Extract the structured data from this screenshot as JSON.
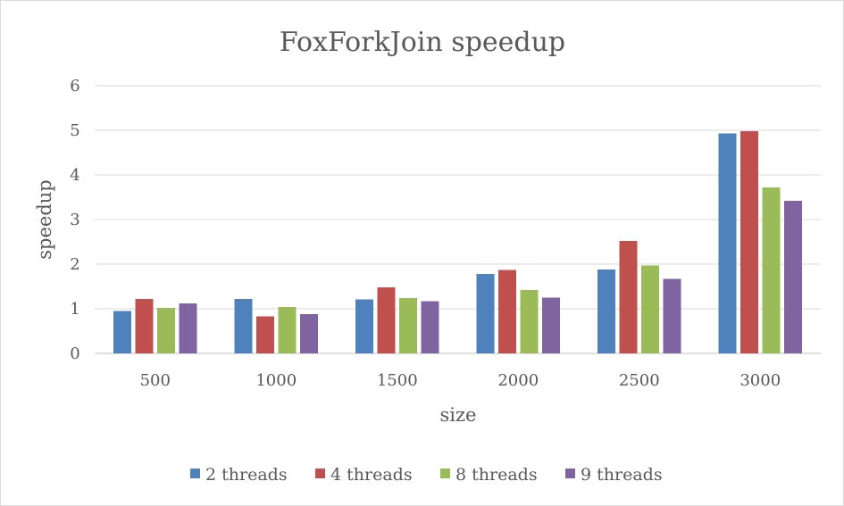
{
  "chart_data": {
    "type": "bar",
    "title": "FoxForkJoin speedup",
    "xlabel": "size",
    "ylabel": "speedup",
    "categories": [
      "500",
      "1000",
      "1500",
      "2000",
      "2500",
      "3000"
    ],
    "ylim": [
      0,
      6
    ],
    "yticks": [
      0,
      1,
      2,
      3,
      4,
      5,
      6
    ],
    "grid": true,
    "legend_position": "bottom",
    "series": [
      {
        "name": "2 threads",
        "color": "#4f81bd",
        "values": [
          0.95,
          1.22,
          1.21,
          1.78,
          1.88,
          4.93
        ]
      },
      {
        "name": "4 threads",
        "color": "#c0504d",
        "values": [
          1.22,
          0.83,
          1.48,
          1.87,
          2.52,
          4.98
        ]
      },
      {
        "name": "8 threads",
        "color": "#9bbb59",
        "values": [
          1.02,
          1.04,
          1.24,
          1.42,
          1.97,
          3.72
        ]
      },
      {
        "name": "9 threads",
        "color": "#8064a2",
        "values": [
          1.12,
          0.88,
          1.17,
          1.25,
          1.67,
          3.42
        ]
      }
    ]
  }
}
